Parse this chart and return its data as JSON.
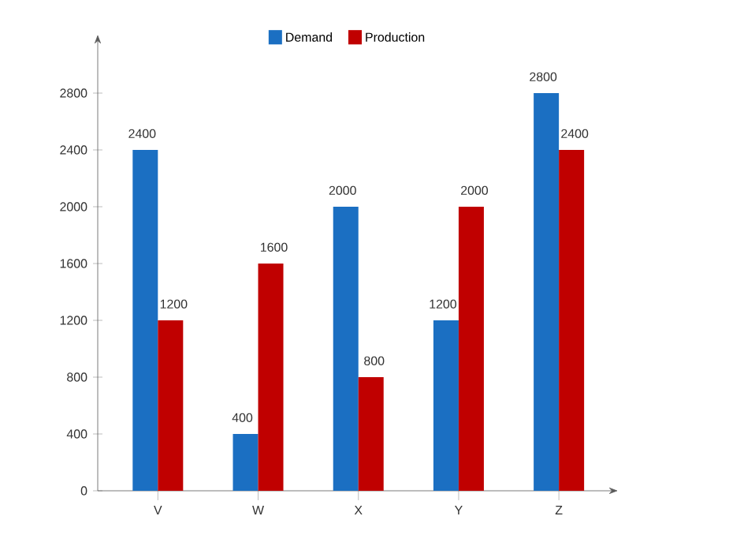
{
  "chart_data": {
    "type": "bar",
    "categories": [
      "V",
      "W",
      "X",
      "Y",
      "Z"
    ],
    "series": [
      {
        "name": "Demand",
        "color": "#1b6fc2",
        "values": [
          2400,
          400,
          2000,
          1200,
          2800
        ]
      },
      {
        "name": "Production",
        "color": "#c00000",
        "values": [
          1200,
          1600,
          800,
          2000,
          2400
        ]
      }
    ],
    "ylim": [
      0,
      3100
    ],
    "yticks": [
      0,
      400,
      800,
      1200,
      1600,
      2000,
      2400,
      2800
    ],
    "data_labels": true,
    "legend": "top",
    "grid": false
  }
}
